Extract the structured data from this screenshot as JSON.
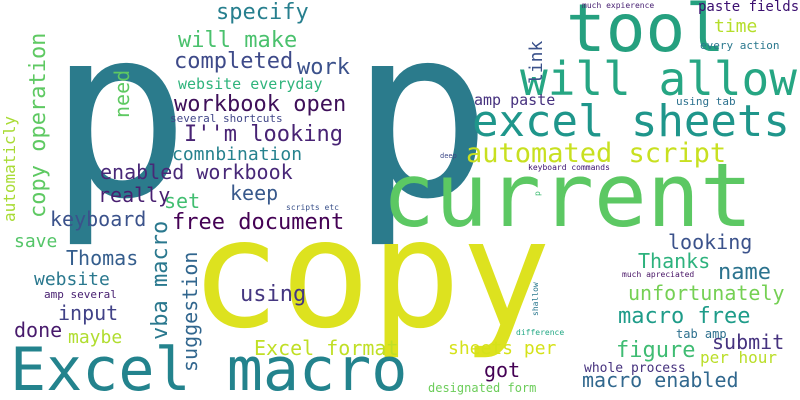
{
  "words": [
    {
      "text": "p",
      "color": "#2b7b8c"
    },
    {
      "text": "p",
      "color": "#2b7b8c"
    },
    {
      "text": "copy",
      "color": "#dde21f"
    },
    {
      "text": "current",
      "color": "#5cc863"
    },
    {
      "text": "Excel macro",
      "color": "#23838d"
    },
    {
      "text": "tool",
      "color": "#25a07f"
    },
    {
      "text": "will allow",
      "color": "#26a683"
    },
    {
      "text": "excel sheets",
      "color": "#1f968b"
    },
    {
      "text": "automated script",
      "color": "#c8e020"
    },
    {
      "text": "specify",
      "color": "#277f8e"
    },
    {
      "text": "will make",
      "color": "#4ac16d"
    },
    {
      "text": "completed",
      "color": "#3e4a89"
    },
    {
      "text": "work",
      "color": "#3b518b"
    },
    {
      "text": "website everyday",
      "color": "#2fb47c"
    },
    {
      "text": "workbook open",
      "color": "#3e0f59"
    },
    {
      "text": "I''m looking",
      "color": "#482374"
    },
    {
      "text": "comnbination",
      "color": "#26828e"
    },
    {
      "text": "enabled workbook",
      "color": "#482878"
    },
    {
      "text": "keep",
      "color": "#38598c"
    },
    {
      "text": "really",
      "color": "#481f70"
    },
    {
      "text": "set",
      "color": "#42be71"
    },
    {
      "text": "keyboard",
      "color": "#3b528b"
    },
    {
      "text": "free document",
      "color": "#440154"
    },
    {
      "text": "save",
      "color": "#54c568"
    },
    {
      "text": "Thomas",
      "color": "#355e8d"
    },
    {
      "text": "website",
      "color": "#2a788e"
    },
    {
      "text": "input",
      "color": "#414287"
    },
    {
      "text": "done",
      "color": "#481a6c"
    },
    {
      "text": "maybe",
      "color": "#b0dd2f"
    },
    {
      "text": "using",
      "color": "#453781"
    },
    {
      "text": "Excel format",
      "color": "#c0df25"
    },
    {
      "text": "sheets per",
      "color": "#d5e21a"
    },
    {
      "text": "got",
      "color": "#440154"
    },
    {
      "text": "figure",
      "color": "#3fbc73"
    },
    {
      "text": "macro free",
      "color": "#1e9c89"
    },
    {
      "text": "macro enabled",
      "color": "#31688e"
    },
    {
      "text": "name",
      "color": "#2c738e"
    },
    {
      "text": "unfortunately",
      "color": "#75d054"
    },
    {
      "text": "Thanks",
      "color": "#2db27d"
    },
    {
      "text": "looking",
      "color": "#3b528b"
    },
    {
      "text": "submit",
      "color": "#46337f"
    },
    {
      "text": "per hour",
      "color": "#bade28"
    },
    {
      "text": "time",
      "color": "#b5de2b"
    },
    {
      "text": "paste fields",
      "color": "#3b0f70"
    },
    {
      "text": "every action",
      "color": "#2a788e"
    },
    {
      "text": "much expierence",
      "color": "#482173"
    },
    {
      "text": "amp paste",
      "color": "#46317e"
    },
    {
      "text": "using tab",
      "color": "#2c718e"
    },
    {
      "text": "several shortcuts",
      "color": "#404688"
    },
    {
      "text": "keyboard commands",
      "color": "#3b0f70"
    },
    {
      "text": "deep",
      "color": "#3e4a89"
    },
    {
      "text": "scripts etc",
      "color": "#3b528b"
    },
    {
      "text": "amp several",
      "color": "#482071"
    },
    {
      "text": "whole process",
      "color": "#46327e"
    },
    {
      "text": "designated form",
      "color": "#6ccd5a"
    },
    {
      "text": "much apreciated",
      "color": "#471365"
    },
    {
      "text": "tab amp",
      "color": "#2d708e"
    },
    {
      "text": "difference",
      "color": "#22a884"
    },
    {
      "text": "copy operation",
      "color": "#5ec962"
    },
    {
      "text": "automaticly",
      "color": "#a8db34"
    },
    {
      "text": "need",
      "color": "#5ec962"
    },
    {
      "text": "vba macro",
      "color": "#2a788e"
    },
    {
      "text": "suggestion",
      "color": "#31668e"
    },
    {
      "text": "link",
      "color": "#3b528b"
    },
    {
      "text": "shallow",
      "color": "#2a788e"
    },
    {
      "text": "p",
      "color": "#3fbc73"
    }
  ]
}
